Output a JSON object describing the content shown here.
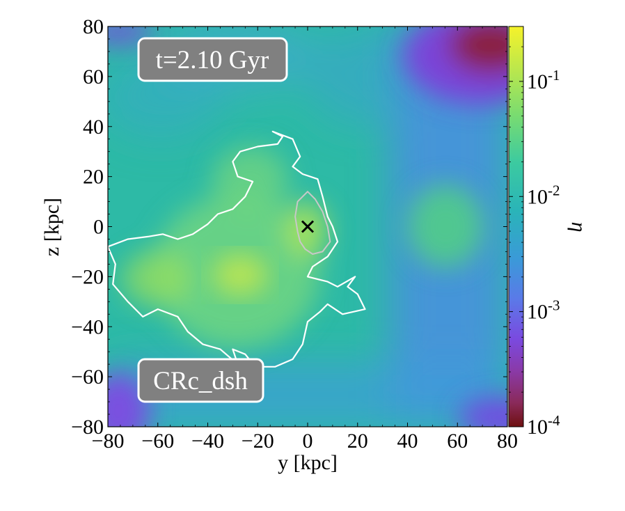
{
  "chart_data": {
    "type": "heatmap",
    "title": "",
    "xlabel": "y [kpc]",
    "ylabel": "z [kpc]",
    "xlim": [
      -80,
      80
    ],
    "ylim": [
      -80,
      80
    ],
    "xticks": [
      -80,
      -60,
      -40,
      -20,
      0,
      20,
      40,
      60,
      80
    ],
    "yticks": [
      -80,
      -60,
      -40,
      -20,
      0,
      20,
      40,
      60,
      80
    ],
    "xtick_labels": [
      "−80",
      "−60",
      "−40",
      "−20",
      "0",
      "20",
      "40",
      "60",
      "80"
    ],
    "ytick_labels": [
      "−80",
      "−60",
      "−40",
      "−20",
      "0",
      "20",
      "40",
      "60",
      "80"
    ],
    "colorbar": {
      "label": "η",
      "scale": "log",
      "range": [
        0.0001,
        0.3
      ],
      "ticks": [
        0.0001,
        0.001,
        0.01,
        0.1
      ],
      "tick_labels": [
        {
          "base": "10",
          "exp": "-4"
        },
        {
          "base": "10",
          "exp": "-3"
        },
        {
          "base": "10",
          "exp": "-2"
        },
        {
          "base": "10",
          "exp": "-1"
        }
      ],
      "colormap": "viridis_r-like (dark red → purple → blue → teal → green → yellow)"
    },
    "annotations": {
      "time": "t=2.10 Gyr",
      "run": "CRc_dsh"
    },
    "marker": {
      "symbol": "x",
      "y": 0,
      "z": 0
    },
    "outer_contour_kpc": [
      [
        -80,
        -8
      ],
      [
        -72,
        -5
      ],
      [
        -64,
        -4
      ],
      [
        -58,
        -3
      ],
      [
        -52,
        -5
      ],
      [
        -46,
        -3
      ],
      [
        -40,
        1
      ],
      [
        -36,
        5
      ],
      [
        -30,
        7
      ],
      [
        -25,
        12
      ],
      [
        -22,
        18
      ],
      [
        -28,
        20
      ],
      [
        -30,
        26
      ],
      [
        -27,
        30
      ],
      [
        -20,
        32
      ],
      [
        -12,
        33
      ],
      [
        -10,
        36
      ],
      [
        -14,
        38
      ],
      [
        -6,
        35
      ],
      [
        -3,
        28
      ],
      [
        -6,
        24
      ],
      [
        -2,
        21
      ],
      [
        4,
        19
      ],
      [
        6,
        12
      ],
      [
        8,
        4
      ],
      [
        10,
        0
      ],
      [
        12,
        -6
      ],
      [
        8,
        -12
      ],
      [
        2,
        -16
      ],
      [
        0,
        -20
      ],
      [
        8,
        -22
      ],
      [
        12,
        -24
      ],
      [
        19,
        -20
      ],
      [
        16,
        -24
      ],
      [
        20,
        -27
      ],
      [
        23,
        -33
      ],
      [
        14,
        -35
      ],
      [
        8,
        -31
      ],
      [
        5,
        -34
      ],
      [
        0,
        -38
      ],
      [
        -2,
        -47
      ],
      [
        -6,
        -53
      ],
      [
        -13,
        -56
      ],
      [
        -21,
        -56
      ],
      [
        -25,
        -51
      ],
      [
        -30,
        -49
      ],
      [
        -28,
        -55
      ],
      [
        -35,
        -49
      ],
      [
        -42,
        -47
      ],
      [
        -48,
        -42
      ],
      [
        -52,
        -36
      ],
      [
        -60,
        -33
      ],
      [
        -66,
        -36
      ],
      [
        -72,
        -30
      ],
      [
        -78,
        -23
      ],
      [
        -77,
        -15
      ],
      [
        -80,
        -8
      ]
    ],
    "inner_contour_kpc": [
      [
        -4,
        10
      ],
      [
        0,
        14
      ],
      [
        3,
        11
      ],
      [
        6,
        6
      ],
      [
        8,
        0
      ],
      [
        9,
        -6
      ],
      [
        6,
        -10
      ],
      [
        2,
        -11
      ],
      [
        -1,
        -9
      ],
      [
        -3,
        -6
      ],
      [
        -4,
        -2
      ],
      [
        -5,
        4
      ],
      [
        -4,
        10
      ]
    ]
  }
}
